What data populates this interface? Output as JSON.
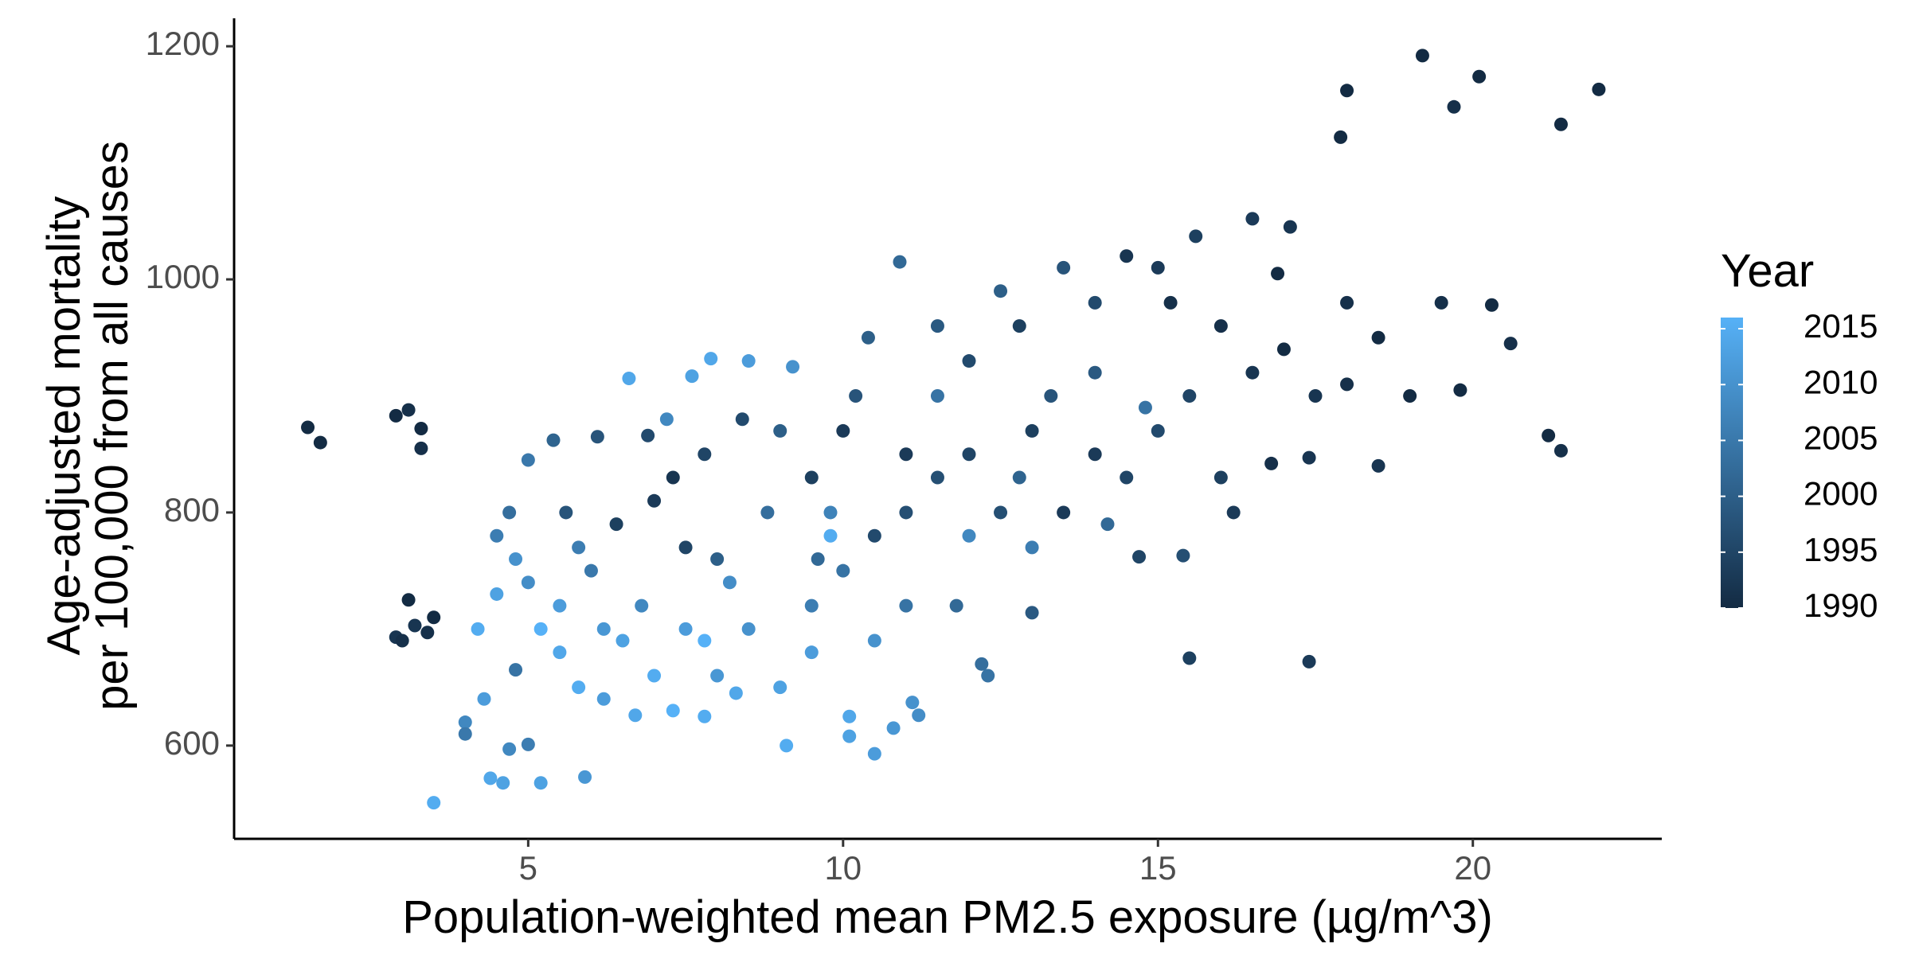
{
  "chart_data": {
    "type": "scatter",
    "x_label": "Population-weighted mean PM2.5 exposure (µg/m^3)",
    "y_label": [
      "Age-adjusted mortality",
      "per 100,000 from all causes"
    ],
    "legend_title": "Year",
    "xlim": [
      0.33,
      23
    ],
    "xticks": [
      5,
      10,
      15,
      20
    ],
    "ylim": [
      520,
      1224
    ],
    "yticks": [
      600,
      800,
      1000,
      1200
    ],
    "colorlim": [
      1990,
      2016
    ],
    "colorticks": [
      1990,
      1995,
      2000,
      2005,
      2010,
      2015
    ],
    "low_color": "#132B43",
    "high_color": "#56B1F7",
    "x": [
      1.5,
      1.7,
      2.9,
      3.1,
      3.3,
      3.3,
      2.9,
      3.0,
      3.1,
      3.5,
      3.4,
      3.2,
      18,
      17.9,
      19.2,
      19.7,
      20.1,
      21.4,
      22,
      21.2,
      21.4,
      18.5,
      15.5,
      17.4,
      3.5,
      4.4,
      4.6,
      5.2,
      5.9,
      4.7,
      5,
      4.0,
      4.0,
      4.3,
      4.8,
      4.2,
      4.5,
      4.8,
      5.2,
      5.5,
      5.8,
      6.2,
      6.7,
      7.3,
      7.8,
      8.3,
      9.1,
      10.1,
      10.5,
      10.8,
      11.1,
      11.2,
      10.1,
      5.0,
      5.4,
      6.1,
      6.9,
      6.6,
      7.6,
      7.9,
      8.5,
      9.2,
      7.2,
      7.8,
      8.4,
      9,
      5.6,
      6.4,
      7,
      7.5,
      8,
      6,
      6.8,
      7.5,
      8.5,
      9.5,
      10,
      9.6,
      10.5,
      11,
      9.5,
      10,
      10.2,
      10.4,
      10.9,
      11.5,
      12,
      12.5,
      12.8,
      13.5,
      14,
      14.5,
      15,
      15.6,
      16.5,
      17.1,
      16.9,
      15.2,
      16,
      17,
      18,
      18.5,
      19.5,
      20.3,
      20.6,
      19,
      19.8,
      18,
      17.5,
      16.5,
      15.5,
      15,
      14,
      13,
      12,
      11.5,
      11,
      12.5,
      13.5,
      14.5,
      16,
      16.2,
      14.7,
      15.4,
      13,
      12.2,
      12.3,
      11.8,
      11,
      10.5,
      9.5,
      9,
      8,
      7,
      6.5,
      5.5,
      5,
      4.5,
      4.7,
      5.8,
      9.8,
      13,
      12,
      14.2,
      16.8,
      17.4,
      13.3,
      14,
      11.5,
      12.8,
      8.8,
      7.3,
      8.2,
      6.2,
      7.8,
      9.8,
      14.8
    ],
    "values": [
      873,
      860,
      883,
      888,
      872,
      855,
      693,
      690,
      725,
      710,
      697,
      703,
      1162,
      1122,
      1192,
      1148,
      1174,
      1133,
      1163,
      866,
      853,
      840,
      675,
      672,
      551,
      572,
      568,
      568,
      573,
      597,
      601,
      620,
      610,
      640,
      665,
      700,
      730,
      760,
      700,
      680,
      650,
      640,
      626,
      630,
      625,
      645,
      600,
      608,
      593,
      615,
      637,
      626,
      625,
      845,
      862,
      865,
      866,
      915,
      917,
      932,
      930,
      925,
      880,
      850,
      880,
      870,
      800,
      790,
      810,
      770,
      760,
      750,
      720,
      700,
      700,
      720,
      750,
      760,
      780,
      800,
      830,
      870,
      900,
      950,
      1015,
      960,
      930,
      990,
      960,
      1010,
      980,
      1020,
      1010,
      1037,
      1052,
      1045,
      1005,
      980,
      960,
      940,
      980,
      950,
      980,
      978,
      945,
      900,
      905,
      910,
      900,
      920,
      900,
      870,
      850,
      870,
      850,
      830,
      850,
      800,
      800,
      830,
      830,
      800,
      762,
      763,
      714,
      670,
      660,
      720,
      720,
      690,
      680,
      650,
      660,
      660,
      690,
      720,
      740,
      780,
      800,
      770,
      800,
      770,
      780,
      790,
      842,
      847,
      900,
      920,
      900,
      830,
      800,
      830,
      740,
      700,
      690,
      780,
      890
    ],
    "color_values": [
      1990,
      1990,
      1990,
      1991,
      1990,
      1991,
      1992,
      1991,
      1990,
      1990,
      1991,
      1992,
      1990,
      1990,
      1990,
      1991,
      1990,
      1990,
      1990,
      1990,
      1991,
      1992,
      1994,
      1993,
      2015,
      2014,
      2013,
      2013,
      2011,
      2008,
      2006,
      2008,
      2005,
      2012,
      2004,
      2015,
      2013,
      2010,
      2016,
      2014,
      2015,
      2012,
      2014,
      2016,
      2015,
      2014,
      2015,
      2013,
      2012,
      2011,
      2010,
      2009,
      2014,
      2005,
      2001,
      1998,
      1996,
      2014,
      2013,
      2014,
      2012,
      2010,
      2008,
      1995,
      1996,
      2000,
      1998,
      1994,
      1993,
      1995,
      2000,
      2005,
      2008,
      2012,
      2010,
      2006,
      2004,
      2002,
      1996,
      1997,
      1994,
      1993,
      1998,
      2000,
      2002,
      1999,
      1996,
      2000,
      1994,
      1998,
      1996,
      1992,
      1993,
      1994,
      1993,
      1992,
      1990,
      1991,
      1991,
      1990,
      1991,
      1990,
      1991,
      1990,
      1991,
      1990,
      1990,
      1991,
      1992,
      1992,
      1995,
      1996,
      1993,
      1994,
      1995,
      1997,
      1993,
      1997,
      1993,
      1995,
      1994,
      1993,
      1995,
      1997,
      1999,
      2003,
      2004,
      2002,
      2004,
      2010,
      2012,
      2013,
      2011,
      2015,
      2013,
      2012,
      2009,
      2006,
      2003,
      2006,
      2007,
      2006,
      2008,
      2002,
      1991,
      1992,
      1998,
      1999,
      2004,
      2001,
      2003,
      1992,
      2009,
      2011,
      2016,
      2015,
      2004
    ]
  }
}
